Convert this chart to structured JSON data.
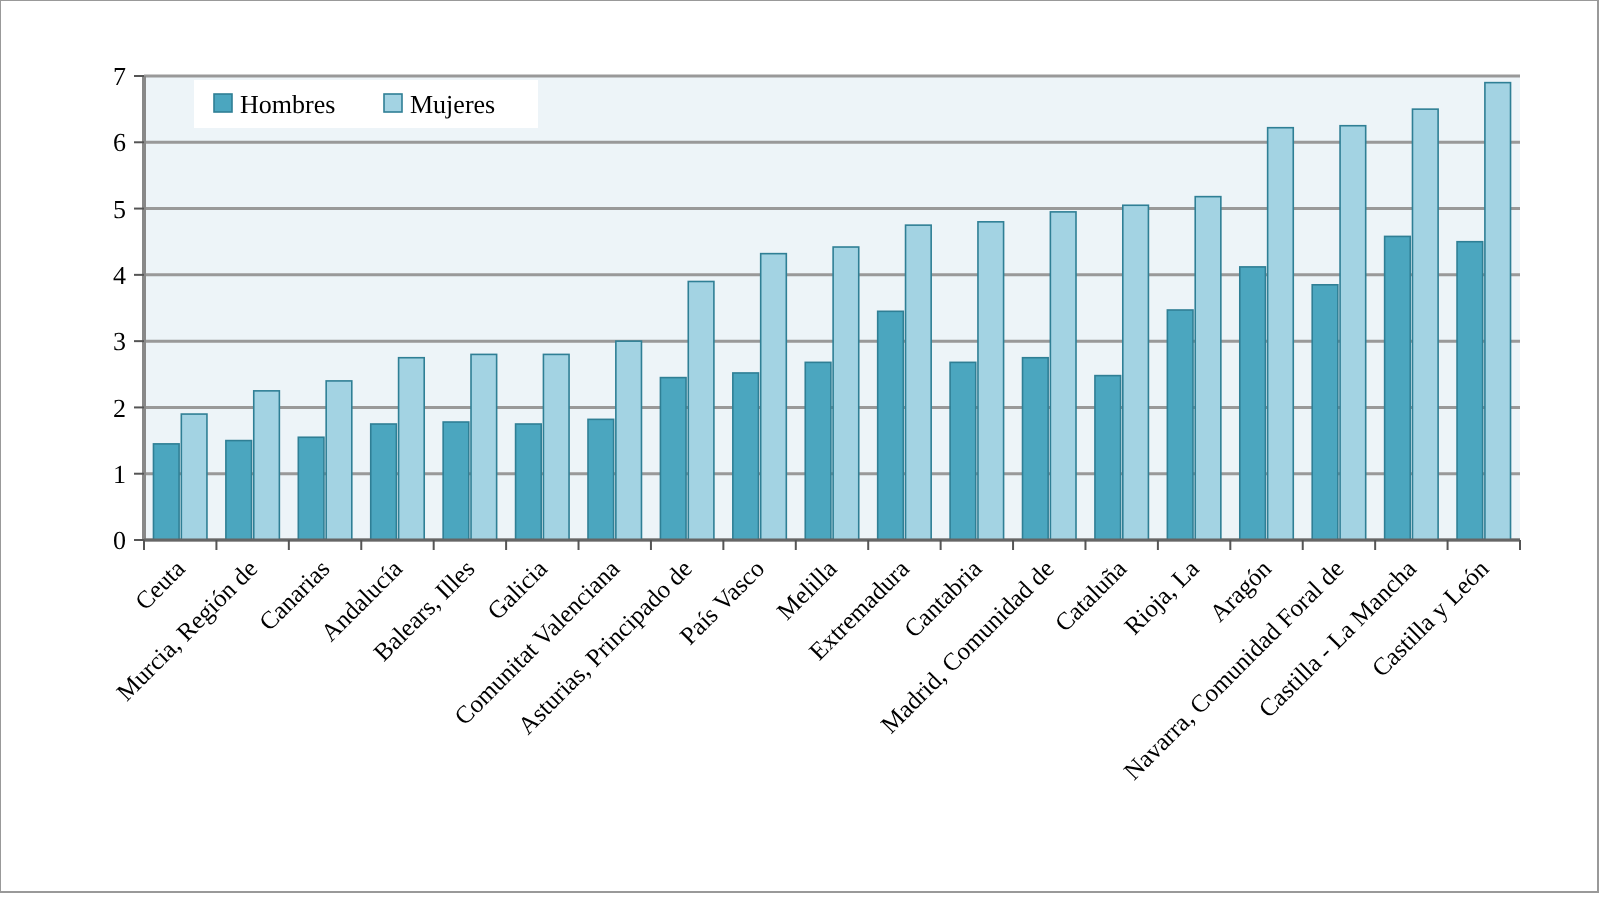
{
  "chart_data": {
    "type": "bar",
    "categories": [
      "Ceuta",
      "Murcia, Región de",
      "Canarias",
      "Andalucía",
      "Balears, Illes",
      "Galicia",
      "Comunitat Valenciana",
      "Asturias, Principado de",
      "País Vasco",
      "Melilla",
      "Extremadura",
      "Cantabria",
      "Madrid, Comunidad de",
      "Cataluña",
      "Rioja, La",
      "Aragón",
      "Navarra, Comunidad Foral de",
      "Castilla - La Mancha",
      "Castilla y León"
    ],
    "series": [
      {
        "name": "Hombres",
        "color": "#4ba6bf",
        "values": [
          1.45,
          1.5,
          1.55,
          1.75,
          1.78,
          1.75,
          1.82,
          2.45,
          2.52,
          2.68,
          3.45,
          2.68,
          2.75,
          2.48,
          3.47,
          4.12,
          3.85,
          4.58,
          4.5
        ]
      },
      {
        "name": "Mujeres",
        "color": "#a3d3e3",
        "values": [
          1.9,
          2.25,
          2.4,
          2.75,
          2.8,
          2.8,
          3.0,
          3.9,
          4.32,
          4.42,
          4.75,
          4.8,
          4.95,
          5.05,
          5.18,
          6.22,
          6.25,
          6.5,
          6.9
        ]
      }
    ],
    "ylim": [
      0,
      7
    ],
    "yticks": [
      0,
      1,
      2,
      3,
      4,
      5,
      6,
      7
    ],
    "grid": "y",
    "legend": "top left"
  }
}
